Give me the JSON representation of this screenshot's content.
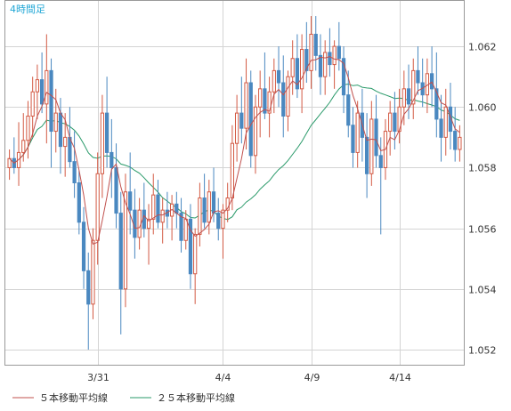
{
  "chart_data": {
    "type": "candlestick",
    "title": "4時間足",
    "ylim": [
      1.0515,
      1.0635
    ],
    "y_ticks": [
      "1.052",
      "1.054",
      "1.056",
      "1.058",
      "1.060",
      "1.062"
    ],
    "x_ticks": [
      {
        "label": "3/31",
        "index": 19
      },
      {
        "label": "4/4",
        "index": 46
      },
      {
        "label": "4/9",
        "index": 65
      },
      {
        "label": "4/14",
        "index": 84
      }
    ],
    "grid": true,
    "colors": {
      "up": "#d35a44",
      "down": "#4a88c0",
      "ma5": "#c0504d",
      "ma25": "#2a9a6a"
    },
    "legend": [
      {
        "label": "５本移動平均線",
        "series": "ma5"
      },
      {
        "label": "２５本移動平均線",
        "series": "ma25"
      }
    ],
    "ohlc": [
      [
        1.058,
        1.0586,
        1.0576,
        1.0583
      ],
      [
        1.0583,
        1.059,
        1.0578,
        1.058
      ],
      [
        1.058,
        1.0595,
        1.0574,
        1.0585
      ],
      [
        1.0585,
        1.0598,
        1.0582,
        1.0589
      ],
      [
        1.0589,
        1.0602,
        1.0583,
        1.0597
      ],
      [
        1.0597,
        1.061,
        1.059,
        1.0605
      ],
      [
        1.0605,
        1.0614,
        1.0596,
        1.0609
      ],
      [
        1.0609,
        1.0618,
        1.0598,
        1.0601
      ],
      [
        1.0601,
        1.0624,
        1.0588,
        1.0612
      ],
      [
        1.0612,
        1.0616,
        1.058,
        1.0592
      ],
      [
        1.0592,
        1.0606,
        1.0585,
        1.0598
      ],
      [
        1.0598,
        1.0603,
        1.0578,
        1.0587
      ],
      [
        1.0587,
        1.0598,
        1.0577,
        1.059
      ],
      [
        1.059,
        1.06,
        1.058,
        1.0582
      ],
      [
        1.0582,
        1.0592,
        1.057,
        1.0575
      ],
      [
        1.0575,
        1.0579,
        1.0558,
        1.0562
      ],
      [
        1.0562,
        1.0567,
        1.054,
        1.0546
      ],
      [
        1.0546,
        1.0552,
        1.052,
        1.0535
      ],
      [
        1.0535,
        1.056,
        1.053,
        1.0556
      ],
      [
        1.0556,
        1.0585,
        1.0548,
        1.0578
      ],
      [
        1.0578,
        1.0604,
        1.057,
        1.0598
      ],
      [
        1.0598,
        1.061,
        1.058,
        1.0585
      ],
      [
        1.0585,
        1.0596,
        1.057,
        1.058
      ],
      [
        1.058,
        1.0588,
        1.056,
        1.0565
      ],
      [
        1.0565,
        1.0572,
        1.0525,
        1.054
      ],
      [
        1.054,
        1.0578,
        1.0534,
        1.0572
      ],
      [
        1.0572,
        1.0585,
        1.0558,
        1.0566
      ],
      [
        1.0566,
        1.0573,
        1.055,
        1.0557
      ],
      [
        1.0557,
        1.057,
        1.0553,
        1.0566
      ],
      [
        1.0566,
        1.0575,
        1.0557,
        1.056
      ],
      [
        1.056,
        1.0568,
        1.0548,
        1.0563
      ],
      [
        1.0563,
        1.0578,
        1.0558,
        1.0571
      ],
      [
        1.0571,
        1.0576,
        1.056,
        1.0562
      ],
      [
        1.0562,
        1.057,
        1.0555,
        1.0566
      ],
      [
        1.0566,
        1.0572,
        1.056,
        1.0564
      ],
      [
        1.0564,
        1.0571,
        1.0556,
        1.0568
      ],
      [
        1.0568,
        1.0572,
        1.056,
        1.0565
      ],
      [
        1.0565,
        1.057,
        1.0552,
        1.0556
      ],
      [
        1.0556,
        1.0566,
        1.0553,
        1.0563
      ],
      [
        1.0563,
        1.0568,
        1.054,
        1.0545
      ],
      [
        1.0545,
        1.056,
        1.0535,
        1.0558
      ],
      [
        1.0558,
        1.0575,
        1.0554,
        1.057
      ],
      [
        1.057,
        1.0578,
        1.056,
        1.0562
      ],
      [
        1.0562,
        1.0576,
        1.0558,
        1.0572
      ],
      [
        1.0572,
        1.058,
        1.0562,
        1.0565
      ],
      [
        1.0565,
        1.057,
        1.0556,
        1.056
      ],
      [
        1.056,
        1.0568,
        1.055,
        1.0566
      ],
      [
        1.0566,
        1.0575,
        1.0562,
        1.057
      ],
      [
        1.057,
        1.0594,
        1.0566,
        1.0588
      ],
      [
        1.0588,
        1.0604,
        1.0582,
        1.0598
      ],
      [
        1.0598,
        1.061,
        1.0588,
        1.0593
      ],
      [
        1.0593,
        1.0616,
        1.0586,
        1.0608
      ],
      [
        1.0608,
        1.0612,
        1.058,
        1.0584
      ],
      [
        1.0584,
        1.0604,
        1.0578,
        1.06
      ],
      [
        1.06,
        1.0612,
        1.059,
        1.0606
      ],
      [
        1.0606,
        1.0618,
        1.0596,
        1.0598
      ],
      [
        1.0598,
        1.061,
        1.059,
        1.0605
      ],
      [
        1.0605,
        1.0616,
        1.0598,
        1.0612
      ],
      [
        1.0612,
        1.062,
        1.06,
        1.0608
      ],
      [
        1.0608,
        1.0617,
        1.059,
        1.0597
      ],
      [
        1.0597,
        1.0612,
        1.0592,
        1.061
      ],
      [
        1.061,
        1.0622,
        1.0604,
        1.0616
      ],
      [
        1.0616,
        1.0624,
        1.0603,
        1.0606
      ],
      [
        1.0606,
        1.0624,
        1.0598,
        1.0619
      ],
      [
        1.0619,
        1.0628,
        1.0608,
        1.0612
      ],
      [
        1.0612,
        1.063,
        1.0606,
        1.0624
      ],
      [
        1.0624,
        1.063,
        1.0612,
        1.0617
      ],
      [
        1.0617,
        1.0624,
        1.0604,
        1.061
      ],
      [
        1.061,
        1.0622,
        1.0604,
        1.0618
      ],
      [
        1.0618,
        1.0626,
        1.061,
        1.0614
      ],
      [
        1.0614,
        1.0622,
        1.0606,
        1.062
      ],
      [
        1.062,
        1.0628,
        1.0612,
        1.0616
      ],
      [
        1.0616,
        1.062,
        1.0598,
        1.0604
      ],
      [
        1.0604,
        1.0612,
        1.059,
        1.0594
      ],
      [
        1.0594,
        1.06,
        1.058,
        1.0585
      ],
      [
        1.0585,
        1.0602,
        1.058,
        1.0598
      ],
      [
        1.0598,
        1.0606,
        1.0582,
        1.059
      ],
      [
        1.059,
        1.0598,
        1.057,
        1.0578
      ],
      [
        1.0578,
        1.0602,
        1.0574,
        1.0596
      ],
      [
        1.0596,
        1.0604,
        1.058,
        1.0584
      ],
      [
        1.0584,
        1.059,
        1.0558,
        1.058
      ],
      [
        1.058,
        1.0596,
        1.0576,
        1.0592
      ],
      [
        1.0592,
        1.0602,
        1.0584,
        1.0598
      ],
      [
        1.0598,
        1.0605,
        1.0586,
        1.0592
      ],
      [
        1.0592,
        1.0606,
        1.0588,
        1.06
      ],
      [
        1.06,
        1.0612,
        1.0594,
        1.0606
      ],
      [
        1.0606,
        1.0614,
        1.0596,
        1.0601
      ],
      [
        1.0601,
        1.0616,
        1.0596,
        1.0612
      ],
      [
        1.0612,
        1.062,
        1.0604,
        1.0608
      ],
      [
        1.0608,
        1.0616,
        1.06,
        1.0604
      ],
      [
        1.0604,
        1.0616,
        1.0598,
        1.0611
      ],
      [
        1.0611,
        1.062,
        1.06,
        1.0606
      ],
      [
        1.0606,
        1.0618,
        1.059,
        1.0596
      ],
      [
        1.0596,
        1.0604,
        1.0582,
        1.059
      ],
      [
        1.059,
        1.0606,
        1.0584,
        1.06
      ],
      [
        1.06,
        1.0608,
        1.0586,
        1.0592
      ],
      [
        1.0592,
        1.06,
        1.0582,
        1.0586
      ],
      [
        1.0586,
        1.0594,
        1.0582,
        1.059
      ]
    ]
  }
}
